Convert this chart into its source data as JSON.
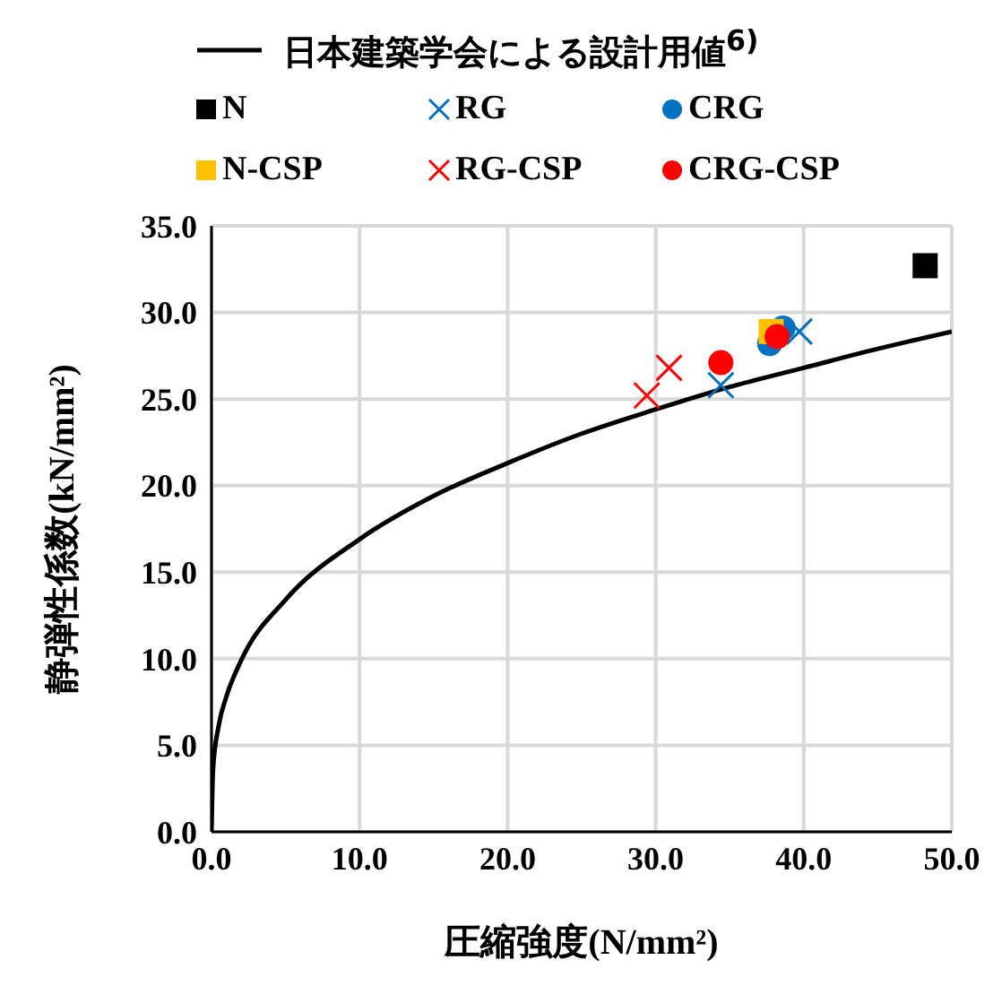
{
  "chart_data": {
    "type": "scatter",
    "xlabel": "圧縮強度(N/mm²)",
    "ylabel": "静弾性係数(kN/mm²)",
    "xlim": [
      0,
      50
    ],
    "ylim": [
      0,
      35
    ],
    "xticks": [
      {
        "value": 0,
        "label": "0.0"
      },
      {
        "value": 10,
        "label": "10.0"
      },
      {
        "value": 20,
        "label": "20.0"
      },
      {
        "value": 30,
        "label": "30.0"
      },
      {
        "value": 40,
        "label": "40.0"
      },
      {
        "value": 50,
        "label": "50.0"
      }
    ],
    "yticks": [
      {
        "value": 0,
        "label": "0.0"
      },
      {
        "value": 5,
        "label": "5.0"
      },
      {
        "value": 10,
        "label": "10.0"
      },
      {
        "value": 15,
        "label": "15.0"
      },
      {
        "value": 20,
        "label": "20.0"
      },
      {
        "value": 25,
        "label": "25.0"
      },
      {
        "value": 30,
        "label": "30.0"
      },
      {
        "value": 35,
        "label": "35.0"
      }
    ],
    "grid": true,
    "legend": "top",
    "series": [
      {
        "name": "日本建築学会による設計用値$^{6)}$",
        "type": "line",
        "color": "#000000",
        "marker": "none",
        "line_style": "solid",
        "x": [
          0,
          0.1,
          0.5,
          1,
          2,
          5,
          10,
          15,
          20,
          25,
          30,
          35,
          40,
          45,
          50
        ],
        "values": [
          0,
          3.6,
          6.2,
          7.8,
          9.9,
          13.4,
          16.9,
          19.4,
          21.3,
          23.0,
          24.4,
          25.7,
          26.8,
          27.9,
          28.9
        ]
      },
      {
        "name": "N",
        "color": "#000000",
        "marker": "square",
        "x": [
          48.2
        ],
        "values": [
          32.7
        ]
      },
      {
        "name": "RG",
        "color": "#0070c0",
        "marker": "cross",
        "x": [
          39.7,
          34.4
        ],
        "values": [
          28.9,
          25.8
        ]
      },
      {
        "name": "CRG",
        "color": "#0070c0",
        "marker": "circle",
        "x": [
          38.6,
          37.7
        ],
        "values": [
          29.1,
          28.2
        ]
      },
      {
        "name": "N-CSP",
        "color": "#ffc000",
        "marker": "square",
        "x": [
          37.8
        ],
        "values": [
          28.9
        ]
      },
      {
        "name": "RG-CSP",
        "color": "#ff0000",
        "marker": "cross",
        "x": [
          30.9,
          29.4
        ],
        "values": [
          26.8,
          25.2
        ]
      },
      {
        "name": "CRG-CSP",
        "color": "#ff0000",
        "marker": "circle",
        "x": [
          34.4,
          38.2
        ],
        "values": [
          27.1,
          28.6
        ]
      }
    ]
  }
}
